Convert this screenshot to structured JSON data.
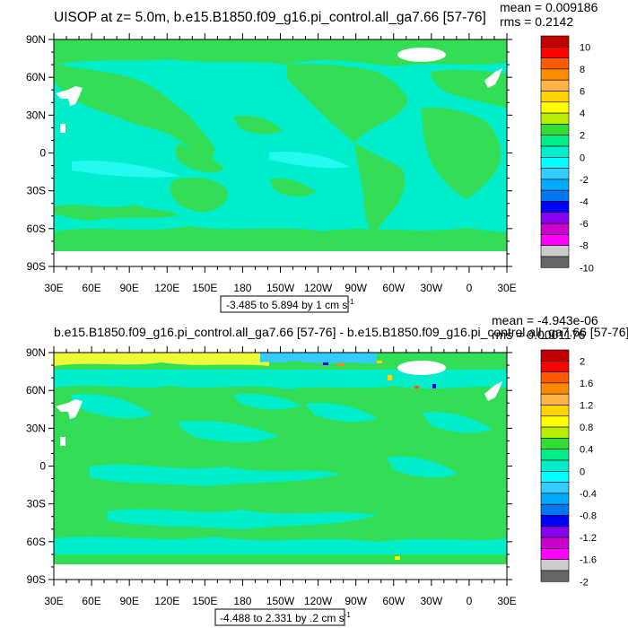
{
  "panels": [
    {
      "title": "UISOP at z=   5.0m, b.e15.B1850.f09_g16.pi_control.all_ga7.66 [57-76]",
      "stats": [
        "mean = 0.009186",
        "rms = 0.2142"
      ],
      "range_label": "-3.485 to 5.894 by 1 cm s",
      "range_unit_exp": "-1",
      "colorbar_labels": [
        "10",
        "8",
        "6",
        "4",
        "2",
        "0",
        "-2",
        "-4",
        "-6",
        "-8",
        "-10"
      ]
    },
    {
      "title": "b.e15.B1850.f09_g16.pi_control.all_ga7.66 [57-76] - b.e15.B1850.f09_g16.pi_control.all_ga7.66 [57-76]",
      "stats": [
        "mean = -4.943e-06",
        "rms = 0.0001176"
      ],
      "range_label": "-4.488 to 2.331 by .2 cm s",
      "range_unit_exp": "-1",
      "colorbar_labels": [
        "2",
        "1.6",
        "1.2",
        "0.8",
        "0.4",
        "0",
        "-0.4",
        "-0.8",
        "-1.2",
        "-1.6",
        "-2"
      ]
    }
  ],
  "lat_labels": [
    "90N",
    "60N",
    "30N",
    "0",
    "30S",
    "60S",
    "90S"
  ],
  "lon_labels": [
    "30E",
    "60E",
    "90E",
    "120E",
    "150E",
    "180",
    "150W",
    "120W",
    "90W",
    "60W",
    "30W",
    "0",
    "30E"
  ],
  "colors": {
    "colorbar": [
      "#c00000",
      "#ff0000",
      "#ff5a00",
      "#ff8a00",
      "#ffb347",
      "#ffd400",
      "#ffff00",
      "#b8ee00",
      "#33dd33",
      "#00ee88",
      "#00eecc",
      "#00ffff",
      "#33ccff",
      "#00aaff",
      "#0077ee",
      "#0000ff",
      "#8800ee",
      "#cc00cc",
      "#ff00ff",
      "#cccccc",
      "#666666"
    ],
    "ocean": "#00eecc",
    "ocean_light": "#33ffff",
    "land": "#33dd55",
    "missing": "#ffffff"
  }
}
